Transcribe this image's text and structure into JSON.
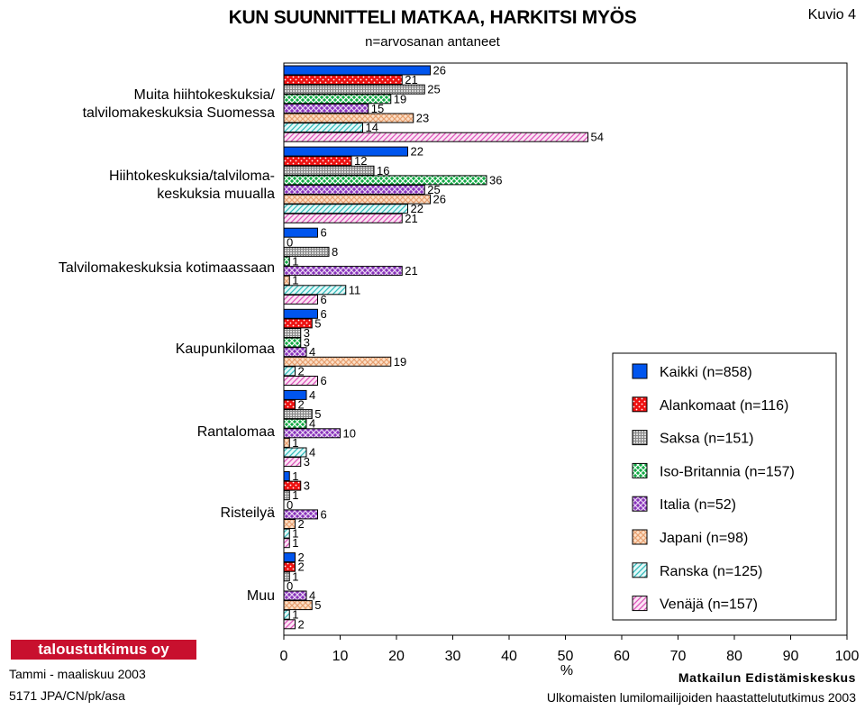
{
  "header": {
    "title": "KUN SUUNNITTELI MATKAA, HARKITSI MYÖS",
    "subtitle": "n=arvosanan antaneet",
    "figure_no": "Kuvio 4"
  },
  "footer": {
    "logo": "taloustutkimus oy",
    "date": "Tammi - maaliskuu 2003",
    "ref": "5171 JPA/CN/pk/asa",
    "brand": "Matkailun Edistämiskeskus",
    "source": "Ulkomaisten lumilomailijoiden haastattelututkimus 2003"
  },
  "colors": {
    "Kaikki": "#0055ee",
    "Alankomaat": "#ee1111",
    "Saksa": "#888888",
    "Iso-Britannia": "#11aa44",
    "Italia": "#8833bb",
    "Japani": "#e8a070",
    "Ranska": "#33bbbb",
    "Venaja": "#dd55bb"
  },
  "chart_data": {
    "type": "bar",
    "orientation": "horizontal",
    "title": "KUN SUUNNITTELI MATKAA, HARKITSI MYÖS",
    "subtitle": "n=arvosanan antaneet",
    "xlabel": "%",
    "xlim": [
      0,
      100
    ],
    "xticks": [
      0,
      10,
      20,
      30,
      40,
      50,
      60,
      70,
      80,
      90,
      100
    ],
    "categories": [
      "Muita hiihtokeskuksia/\ntalvilomakeskuksia Suomessa",
      "Hiihtokeskuksia/talviloma-\nkeskuksia muualla",
      "Talvilomakeskuksia kotimaassaan",
      "Kaupunkilomaa",
      "Rantalomaa",
      "Risteilyä",
      "Muu"
    ],
    "series": [
      {
        "name": "Kaikki (n=858)",
        "values": [
          26,
          22,
          6,
          6,
          4,
          1,
          2
        ]
      },
      {
        "name": "Alankomaat (n=116)",
        "values": [
          21,
          12,
          0,
          5,
          2,
          3,
          2
        ]
      },
      {
        "name": "Saksa (n=151)",
        "values": [
          25,
          16,
          8,
          3,
          5,
          1,
          1
        ]
      },
      {
        "name": "Iso-Britannia (n=157)",
        "values": [
          19,
          36,
          1,
          3,
          4,
          0,
          0
        ]
      },
      {
        "name": "Italia (n=52)",
        "values": [
          15,
          25,
          21,
          4,
          10,
          6,
          4
        ]
      },
      {
        "name": "Japani (n=98)",
        "values": [
          23,
          26,
          1,
          19,
          1,
          2,
          5
        ]
      },
      {
        "name": "Ranska (n=125)",
        "values": [
          14,
          22,
          11,
          2,
          4,
          1,
          1
        ]
      },
      {
        "name": "Venäjä (n=157)",
        "values": [
          54,
          21,
          6,
          6,
          3,
          1,
          2
        ]
      }
    ],
    "legend": "right"
  }
}
